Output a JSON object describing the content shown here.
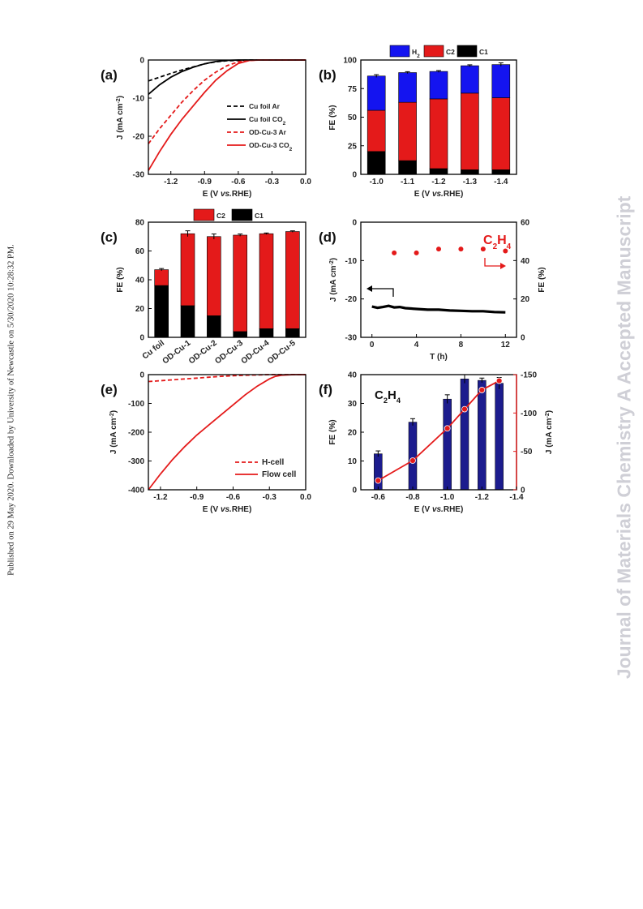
{
  "sidebar": {
    "published": "Published on 29 May 2020. Downloaded by University of Newcastle on 5/30/2020 10:28:32 PM.",
    "journal": "Journal of Materials Chemistry A Accepted Manuscript"
  },
  "colors": {
    "red": "#e41a1a",
    "blue": "#1414f0",
    "black": "#000000",
    "navy": "#1c1c8e"
  },
  "chart_data": [
    {
      "panel": "(a)",
      "type": "line",
      "xlabel": "E (V vs.RHE)",
      "ylabel": "J (mA cm-2)",
      "xlim": [
        -1.4,
        0.0
      ],
      "ylim": [
        -30,
        0
      ],
      "xticks": [
        -1.2,
        -0.9,
        -0.6,
        -0.3,
        0.0
      ],
      "xtick_labels": [
        "-1.2",
        "-0.9",
        "-0.6",
        "-0.3",
        "0.0"
      ],
      "yticks": [
        0,
        -10,
        -20,
        -30
      ],
      "ytick_labels": [
        "0",
        "-10",
        "-20",
        "-30"
      ],
      "legend": "right",
      "series": [
        {
          "name": "Cu foil Ar",
          "dash": true,
          "color": "#000000",
          "x": [
            -1.4,
            -1.3,
            -1.2,
            -1.1,
            -1.0,
            -0.9,
            -0.8,
            -0.7,
            -0.6,
            -0.5,
            -0.4,
            -0.3,
            0.0
          ],
          "y": [
            -5.5,
            -4.5,
            -3.5,
            -2.6,
            -1.8,
            -1.0,
            -0.5,
            -0.2,
            -0.1,
            0,
            0,
            0,
            0
          ]
        },
        {
          "name": "Cu foil CO2",
          "dash": false,
          "color": "#000000",
          "x": [
            -1.4,
            -1.3,
            -1.2,
            -1.1,
            -1.0,
            -0.9,
            -0.8,
            -0.7,
            -0.6,
            -0.5,
            -0.4,
            -0.3,
            0.0
          ],
          "y": [
            -9,
            -6.5,
            -4.5,
            -3.0,
            -1.9,
            -1.0,
            -0.4,
            -0.1,
            0,
            0,
            0,
            0,
            0
          ]
        },
        {
          "name": "OD-Cu-3 Ar",
          "dash": true,
          "color": "#e41a1a",
          "x": [
            -1.4,
            -1.3,
            -1.2,
            -1.1,
            -1.0,
            -0.9,
            -0.8,
            -0.7,
            -0.6,
            -0.5,
            -0.4,
            -0.3,
            0.0
          ],
          "y": [
            -22,
            -18,
            -14.5,
            -11,
            -8,
            -5.3,
            -3.2,
            -1.5,
            -0.5,
            -0.1,
            0,
            0,
            0
          ]
        },
        {
          "name": "OD-Cu-3  CO2",
          "dash": false,
          "color": "#e41a1a",
          "x": [
            -1.4,
            -1.3,
            -1.2,
            -1.1,
            -1.0,
            -0.9,
            -0.8,
            -0.7,
            -0.6,
            -0.5,
            -0.4,
            -0.3,
            0.0
          ],
          "y": [
            -29,
            -24,
            -19.5,
            -15.5,
            -12,
            -8.5,
            -5.3,
            -2.8,
            -0.9,
            -0.1,
            0,
            0,
            0
          ]
        }
      ]
    },
    {
      "panel": "(b)",
      "type": "bar",
      "stacked": true,
      "xlabel": "E (V vs.RHE)",
      "ylabel": "FE (%)",
      "ylim": [
        0,
        100
      ],
      "yticks": [
        0,
        25,
        50,
        75,
        100
      ],
      "categories": [
        "-1.0",
        "-1.1",
        "-1.2",
        "-1.3",
        "-1.4"
      ],
      "legend": "top",
      "series": [
        {
          "name": "C1",
          "color": "#000000",
          "values": [
            20,
            12,
            5,
            4,
            4
          ]
        },
        {
          "name": "C2",
          "color": "#e41a1a",
          "values": [
            36,
            51,
            61,
            67,
            63
          ]
        },
        {
          "name": "H2",
          "color": "#1414f0",
          "values": [
            30,
            26,
            24,
            24,
            29
          ]
        }
      ],
      "errors": [
        1.2,
        0.8,
        0.8,
        0.8,
        1.5
      ]
    },
    {
      "panel": "(c)",
      "type": "bar",
      "stacked": true,
      "ylabel": "FE (%)",
      "ylim": [
        0,
        80
      ],
      "yticks": [
        0,
        20,
        40,
        60,
        80
      ],
      "categories": [
        "Cu foil",
        "OD-Cu-1",
        "OD-Cu-2",
        "OD-Cu-3",
        "OD-Cu-4",
        "OD-Cu-5"
      ],
      "legend": "top",
      "series": [
        {
          "name": "C1",
          "color": "#000000",
          "values": [
            36,
            22,
            15,
            4,
            6,
            6
          ]
        },
        {
          "name": "C2",
          "color": "#e41a1a",
          "values": [
            11,
            50,
            55,
            67,
            66,
            67.5
          ]
        }
      ],
      "errors": [
        0.8,
        2.0,
        1.8,
        0.8,
        0.5,
        0.5
      ]
    },
    {
      "panel": "(d)",
      "type": "scatter",
      "xlabel": "T (h)",
      "ylabel": "J (mA cm-2)",
      "y2label": "FE (%)",
      "xlim": [
        -1,
        13
      ],
      "ylim": [
        -30,
        0
      ],
      "y2lim": [
        0,
        60
      ],
      "xticks": [
        0,
        4,
        8,
        12
      ],
      "yticks": [
        0,
        -10,
        -20,
        -30
      ],
      "y2ticks": [
        0,
        20,
        40,
        60
      ],
      "annotation": {
        "text": "C2H4",
        "main": "C",
        "sub1": "2",
        "mid": "H",
        "sub2": "4"
      },
      "current": {
        "x": [
          0,
          0.5,
          1,
          1.5,
          2,
          2.5,
          3,
          4,
          5,
          6,
          7,
          8,
          9,
          10,
          11,
          12
        ],
        "y": [
          -22,
          -22.3,
          -22.1,
          -21.8,
          -22.2,
          -22.1,
          -22.4,
          -22.6,
          -22.8,
          -22.8,
          -23,
          -23.1,
          -23.2,
          -23.2,
          -23.4,
          -23.5
        ]
      },
      "fe": {
        "x": [
          2,
          4,
          6,
          8,
          10,
          12
        ],
        "y": [
          44,
          44,
          46,
          46,
          46,
          45
        ]
      }
    },
    {
      "panel": "(e)",
      "type": "line",
      "xlabel": "E (V vs.RHE)",
      "ylabel": "J (mA cm-2)",
      "xlim": [
        -1.3,
        0.0
      ],
      "ylim": [
        -400,
        0
      ],
      "xticks": [
        -1.2,
        -0.9,
        -0.6,
        -0.3,
        0.0
      ],
      "xtick_labels": [
        "-1.2",
        "-0.9",
        "-0.6",
        "-0.3",
        "0.0"
      ],
      "yticks": [
        0,
        -100,
        -200,
        -300,
        -400
      ],
      "legend": "bottom-right",
      "series": [
        {
          "name": "H-cell",
          "dash": true,
          "color": "#e41a1a",
          "x": [
            -1.3,
            -1.2,
            -1.1,
            -1.0,
            -0.9,
            -0.8,
            -0.7,
            -0.6,
            -0.5,
            -0.4,
            -0.3,
            -0.2,
            0.0
          ],
          "y": [
            -24,
            -21,
            -18,
            -15,
            -12,
            -9,
            -6,
            -4,
            -2,
            -1,
            0,
            0,
            0
          ]
        },
        {
          "name": "Flow cell",
          "dash": false,
          "color": "#e41a1a",
          "x": [
            -1.3,
            -1.2,
            -1.1,
            -1.0,
            -0.9,
            -0.8,
            -0.7,
            -0.6,
            -0.5,
            -0.4,
            -0.3,
            -0.25,
            -0.2,
            -0.1,
            0.0
          ],
          "y": [
            -400,
            -345,
            -295,
            -250,
            -210,
            -175,
            -140,
            -105,
            -70,
            -40,
            -15,
            -6,
            -2,
            0,
            0
          ]
        }
      ]
    },
    {
      "panel": "(f)",
      "type": "bar",
      "xlabel": "E (V vs.RHE)",
      "ylabel": "FE (%)",
      "y2label": "J (mA cm-2)",
      "xlim": [
        -0.5,
        -1.4
      ],
      "ylim": [
        0,
        40
      ],
      "y2lim": [
        0,
        -150
      ],
      "xticks": [
        -0.6,
        -0.8,
        -1.0,
        -1.2,
        -1.4
      ],
      "xtick_labels": [
        "-0.6",
        "-0.8",
        "-1.0",
        "-1.2",
        "-1.4"
      ],
      "yticks": [
        0,
        10,
        20,
        30,
        40
      ],
      "y2ticks": [
        0,
        -50,
        -100,
        -150
      ],
      "annotation": {
        "text": "C2H4",
        "main": "C",
        "sub1": "2",
        "mid": "H",
        "sub2": "4"
      },
      "x": [
        -0.6,
        -0.8,
        -1.0,
        -1.1,
        -1.2,
        -1.3
      ],
      "fe_values": [
        12.5,
        23.5,
        31.5,
        38.5,
        38,
        37
      ],
      "fe_errors": [
        1.0,
        1.2,
        1.5,
        1.5,
        0.8,
        2.0
      ],
      "j_values": [
        -12,
        -38,
        -80,
        -105,
        -130,
        -142
      ]
    }
  ]
}
